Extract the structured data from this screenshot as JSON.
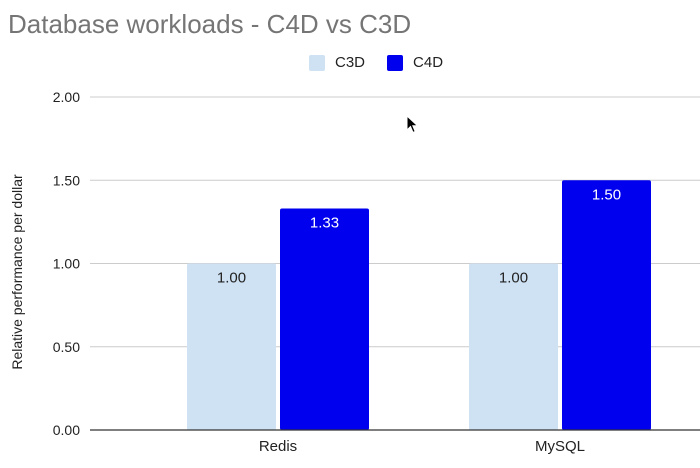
{
  "chart_data": {
    "type": "bar",
    "title": "Database workloads - C4D vs C3D",
    "xlabel": "",
    "ylabel": "Relative performance per dollar",
    "categories": [
      "Redis",
      "MySQL"
    ],
    "series": [
      {
        "name": "C3D",
        "values": [
          1.0,
          1.0
        ],
        "labels": [
          "1.00",
          "1.00"
        ],
        "color": "#cfe2f3",
        "label_color": "#222222"
      },
      {
        "name": "C4D",
        "values": [
          1.33,
          1.5
        ],
        "labels": [
          "1.33",
          "1.50"
        ],
        "color": "#0000ee",
        "label_color": "#ffffff"
      }
    ],
    "ylim": [
      0,
      2
    ],
    "yticks": [
      "0.00",
      "0.50",
      "1.00",
      "1.50",
      "2.00"
    ],
    "grid": true,
    "legend_position": "top-center"
  }
}
